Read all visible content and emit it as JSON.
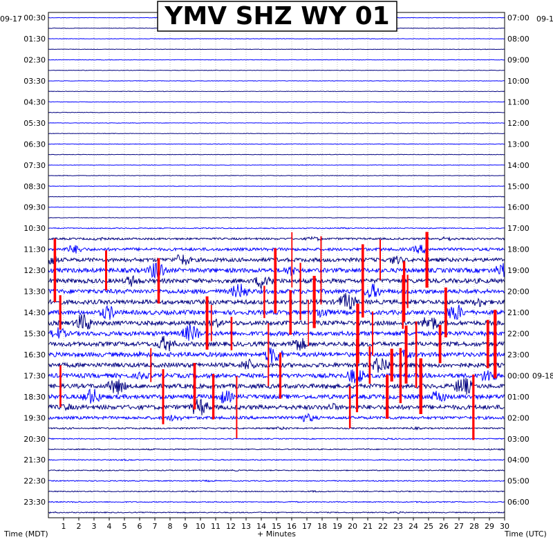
{
  "chart_data": {
    "type": "line",
    "title": "YMV SHZ WY 01",
    "xlabel": "+ Minutes",
    "left_axis_label": "Time (MDT)",
    "right_axis_label": "Time (UTC)",
    "start_date_left": "09-17",
    "start_date_right": "09-1",
    "date_change_label": "09-18",
    "x_range": [
      0,
      30
    ],
    "x_ticks": [
      "1",
      "2",
      "3",
      "4",
      "5",
      "6",
      "7",
      "8",
      "9",
      "10",
      "11",
      "12",
      "13",
      "14",
      "15",
      "16",
      "17",
      "18",
      "19",
      "20",
      "21",
      "22",
      "23",
      "24",
      "25",
      "26",
      "27",
      "28",
      "29",
      "30"
    ],
    "left_tick_labels": [
      "00:30",
      "01:30",
      "02:30",
      "03:30",
      "04:30",
      "05:30",
      "06:30",
      "07:30",
      "08:30",
      "09:30",
      "10:30",
      "11:30",
      "12:30",
      "13:30",
      "14:30",
      "15:30",
      "16:30",
      "17:30",
      "18:30",
      "19:30",
      "20:30",
      "21:30",
      "22:30",
      "23:30"
    ],
    "right_tick_labels": [
      "07:00",
      "08:00",
      "09:00",
      "10:00",
      "11:00",
      "12:00",
      "13:00",
      "14:00",
      "15:00",
      "16:00",
      "17:00",
      "18:00",
      "19:00",
      "20:00",
      "21:00",
      "22:00",
      "23:00",
      "00:00",
      "01:00",
      "02:00",
      "03:00",
      "04:00",
      "05:00",
      "06:00"
    ],
    "trace_count": 48,
    "trace_colors": [
      "#0000ff",
      "#000080"
    ],
    "clip_color": "#ff0000",
    "grid": true,
    "noise_profile": {
      "description_free_levels": [
        1,
        1,
        1,
        1,
        1,
        1,
        1,
        1,
        1,
        1,
        1,
        1,
        1,
        1,
        1,
        1,
        1,
        1,
        1,
        1,
        2,
        4,
        6,
        8,
        9,
        9,
        9,
        9,
        9,
        9,
        9,
        9,
        9,
        9,
        9,
        9,
        9,
        9,
        6,
        3,
        2,
        2,
        2,
        2,
        2,
        2,
        2,
        2
      ]
    }
  }
}
